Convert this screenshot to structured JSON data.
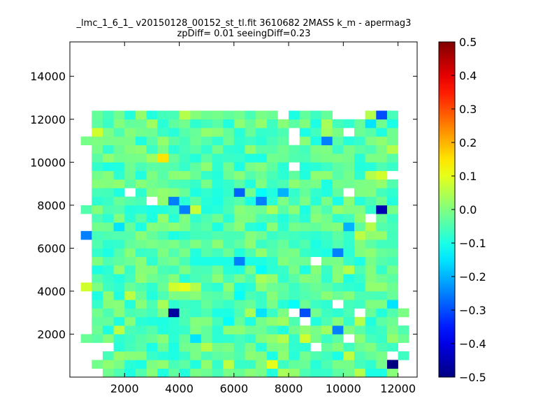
{
  "chart_data": {
    "type": "heatmap",
    "title_line1": "_lmc_1_6_1_ v20150128_00152_st_tl.fit 3610682 2MASS k_m - apermag3",
    "title_line2": "zpDiff= 0.01 seeingDiff=0.23",
    "xlabel": "",
    "ylabel": "",
    "xlim": [
      0,
      12700
    ],
    "ylim": [
      0,
      15600
    ],
    "x_ticks": [
      2000,
      4000,
      6000,
      8000,
      10000,
      12000
    ],
    "y_ticks": [
      2000,
      4000,
      6000,
      8000,
      10000,
      12000,
      14000
    ],
    "colormap": "jet",
    "color_range": [
      -0.5,
      0.5
    ],
    "colorbar_ticks": [
      "0.5",
      "0.4",
      "0.3",
      "0.2",
      "0.1",
      "0.0",
      "−0.1",
      "−0.2",
      "−0.3",
      "−0.4",
      "−0.5"
    ],
    "grid": false,
    "grid_cols": 32,
    "grid_rows": 31,
    "cell_size": 400,
    "default_value": -0.04,
    "empty_cells": [
      [
        0,
        0
      ],
      [
        1,
        0
      ],
      [
        2,
        0
      ],
      [
        0,
        1
      ],
      [
        1,
        1
      ],
      [
        0,
        2
      ],
      [
        1,
        2
      ],
      [
        2,
        2
      ],
      [
        0,
        3
      ],
      [
        1,
        3
      ],
      [
        2,
        3
      ],
      [
        3,
        3
      ],
      [
        0,
        4
      ],
      [
        0,
        5
      ],
      [
        1,
        5
      ],
      [
        0,
        6
      ],
      [
        1,
        6
      ],
      [
        0,
        7
      ],
      [
        1,
        7
      ],
      [
        0,
        8
      ],
      [
        1,
        8
      ],
      [
        0,
        9
      ],
      [
        1,
        9
      ],
      [
        0,
        10
      ],
      [
        0,
        11
      ],
      [
        1,
        11
      ],
      [
        0,
        12
      ],
      [
        1,
        12
      ],
      [
        0,
        13
      ],
      [
        1,
        13
      ],
      [
        0,
        14
      ],
      [
        1,
        14
      ],
      [
        0,
        15
      ],
      [
        1,
        15
      ],
      [
        0,
        16
      ],
      [
        0,
        17
      ],
      [
        1,
        17
      ],
      [
        0,
        18
      ],
      [
        1,
        18
      ],
      [
        0,
        19
      ],
      [
        0,
        20
      ],
      [
        1,
        20
      ],
      [
        0,
        21
      ],
      [
        1,
        21
      ],
      [
        0,
        22
      ],
      [
        1,
        22
      ],
      [
        0,
        23
      ],
      [
        1,
        23
      ],
      [
        0,
        24
      ],
      [
        1,
        24
      ],
      [
        0,
        25
      ],
      [
        1,
        25
      ],
      [
        0,
        26
      ],
      [
        1,
        26
      ],
      [
        0,
        27
      ],
      [
        0,
        28
      ],
      [
        1,
        28
      ],
      [
        0,
        29
      ],
      [
        1,
        29
      ],
      [
        0,
        30
      ],
      [
        1,
        30
      ],
      [
        30,
        0
      ],
      [
        31,
        0
      ],
      [
        30,
        1
      ],
      [
        31,
        1
      ],
      [
        31,
        2
      ],
      [
        30,
        3
      ],
      [
        31,
        3
      ],
      [
        31,
        4
      ],
      [
        31,
        5
      ],
      [
        30,
        6
      ],
      [
        31,
        6
      ],
      [
        31,
        7
      ],
      [
        30,
        8
      ],
      [
        31,
        8
      ],
      [
        30,
        9
      ],
      [
        31,
        9
      ],
      [
        30,
        10
      ],
      [
        31,
        10
      ],
      [
        30,
        11
      ],
      [
        31,
        11
      ],
      [
        30,
        12
      ],
      [
        31,
        12
      ],
      [
        30,
        13
      ],
      [
        31,
        13
      ],
      [
        30,
        14
      ],
      [
        31,
        14
      ],
      [
        30,
        15
      ],
      [
        31,
        15
      ],
      [
        30,
        16
      ],
      [
        31,
        16
      ],
      [
        30,
        17
      ],
      [
        31,
        17
      ],
      [
        30,
        18
      ],
      [
        31,
        18
      ],
      [
        30,
        19
      ],
      [
        31,
        19
      ],
      [
        30,
        20
      ],
      [
        31,
        20
      ],
      [
        30,
        21
      ],
      [
        31,
        21
      ],
      [
        30,
        22
      ],
      [
        31,
        22
      ],
      [
        30,
        23
      ],
      [
        31,
        23
      ],
      [
        30,
        24
      ],
      [
        31,
        24
      ],
      [
        30,
        25
      ],
      [
        31,
        25
      ],
      [
        30,
        26
      ],
      [
        31,
        26
      ],
      [
        30,
        27
      ],
      [
        31,
        27
      ],
      [
        30,
        28
      ],
      [
        31,
        28
      ],
      [
        30,
        29
      ],
      [
        31,
        29
      ],
      [
        30,
        30
      ],
      [
        31,
        30
      ],
      [
        22,
        3
      ],
      [
        29,
        2
      ],
      [
        25,
        4
      ],
      [
        21,
        6
      ],
      [
        26,
        7
      ],
      [
        20,
        7
      ],
      [
        24,
        8
      ],
      [
        22,
        13
      ],
      [
        27,
        18
      ],
      [
        7,
        20
      ],
      [
        5,
        21
      ],
      [
        25,
        21
      ],
      [
        20,
        24
      ],
      [
        29,
        23
      ],
      [
        20,
        27
      ],
      [
        20,
        28
      ],
      [
        25,
        28
      ],
      [
        24,
        30
      ],
      [
        19,
        30
      ],
      [
        25,
        30
      ],
      [
        26,
        30
      ]
    ],
    "cells": [
      {
        "col": 19,
        "row": 0,
        "value": 0.04
      },
      {
        "col": 20,
        "row": 0,
        "value": 0.02
      },
      {
        "col": 26,
        "row": 0,
        "value": 0.05
      },
      {
        "col": 27,
        "row": 0,
        "value": -0.1
      },
      {
        "col": 18,
        "row": 1,
        "value": 0.1
      },
      {
        "col": 16,
        "row": 1,
        "value": -0.07
      },
      {
        "col": 23,
        "row": 1,
        "value": -0.05
      },
      {
        "col": 14,
        "row": 1,
        "value": 0.06
      },
      {
        "col": 29,
        "row": 1,
        "value": -0.5
      },
      {
        "col": 25,
        "row": 2,
        "value": 0.06
      },
      {
        "col": 4,
        "row": 2,
        "value": 0.02
      },
      {
        "col": 7,
        "row": 3,
        "value": -0.1
      },
      {
        "col": 9,
        "row": 3,
        "value": -0.1
      },
      {
        "col": 2,
        "row": 3,
        "value": 0.08
      },
      {
        "col": 30,
        "row": 3,
        "value": 0.07
      },
      {
        "col": 12,
        "row": 3,
        "value": 0.05
      },
      {
        "col": 22,
        "row": 3,
        "value": -0.12
      },
      {
        "col": 21,
        "row": 4,
        "value": 0.08
      },
      {
        "col": 11,
        "row": 4,
        "value": -0.15
      },
      {
        "col": 19,
        "row": 4,
        "value": 0.05
      },
      {
        "col": 0,
        "row": 5,
        "value": -0.3
      },
      {
        "col": 24,
        "row": 5,
        "value": -0.25
      },
      {
        "col": 23,
        "row": 5,
        "value": 0.03
      },
      {
        "col": 4,
        "row": 5,
        "value": 0.06
      },
      {
        "col": 0,
        "row": 6,
        "value": 0.04
      },
      {
        "col": 14,
        "row": 6,
        "value": -0.12
      },
      {
        "col": 26,
        "row": 6,
        "value": 0.05
      },
      {
        "col": 19,
        "row": 6,
        "value": 0.03
      },
      {
        "col": 9,
        "row": 7,
        "value": -0.47
      },
      {
        "col": 17,
        "row": 7,
        "value": -0.15
      },
      {
        "col": 21,
        "row": 7,
        "value": -0.3
      },
      {
        "col": 16,
        "row": 7,
        "value": 0.04
      },
      {
        "col": 12,
        "row": 7,
        "value": -0.05
      },
      {
        "col": 24,
        "row": 7,
        "value": -0.08
      },
      {
        "col": 3,
        "row": 7,
        "value": -0.05
      },
      {
        "col": 7,
        "row": 8,
        "value": -0.05
      },
      {
        "col": 8,
        "row": 8,
        "value": 0.04
      },
      {
        "col": 20,
        "row": 8,
        "value": -0.12
      },
      {
        "col": 29,
        "row": 8,
        "value": -0.15
      },
      {
        "col": 15,
        "row": 9,
        "value": -0.12
      },
      {
        "col": 5,
        "row": 9,
        "value": 0.06
      },
      {
        "col": 15,
        "row": 10,
        "value": -0.1
      },
      {
        "col": 11,
        "row": 10,
        "value": 0.05
      },
      {
        "col": 1,
        "row": 10,
        "value": 0.08
      },
      {
        "col": 9,
        "row": 10,
        "value": 0.08
      },
      {
        "col": 10,
        "row": 10,
        "value": 0.1
      },
      {
        "col": 17,
        "row": 11,
        "value": 0.04
      },
      {
        "col": 25,
        "row": 12,
        "value": 0.05
      },
      {
        "col": 0,
        "row": 13,
        "value": 0.07
      },
      {
        "col": 15,
        "row": 13,
        "value": -0.25
      },
      {
        "col": 26,
        "row": 13,
        "value": -0.1
      },
      {
        "col": 17,
        "row": 12,
        "value": -0.12
      },
      {
        "col": 19,
        "row": 12,
        "value": -0.07
      },
      {
        "col": 31,
        "row": 13,
        "value": -0.07
      },
      {
        "col": 11,
        "row": 13,
        "value": -0.1
      },
      {
        "col": 12,
        "row": 13,
        "value": -0.1
      },
      {
        "col": 13,
        "row": 13,
        "value": -0.1
      },
      {
        "col": 14,
        "row": 13,
        "value": -0.1
      },
      {
        "col": 16,
        "row": 13,
        "value": -0.1
      },
      {
        "col": 18,
        "row": 13,
        "value": -0.08
      },
      {
        "col": 24,
        "row": 14,
        "value": -0.25
      },
      {
        "col": 0,
        "row": 14,
        "value": 0.03
      },
      {
        "col": 0,
        "row": 15,
        "value": 0.04
      },
      {
        "col": 3,
        "row": 15,
        "value": -0.08
      },
      {
        "col": 1,
        "row": 16,
        "value": -0.25
      },
      {
        "col": 28,
        "row": 16,
        "value": 0.02
      },
      {
        "col": 27,
        "row": 17,
        "value": 0.05
      },
      {
        "col": 26,
        "row": 16,
        "value": 0.06
      },
      {
        "col": 25,
        "row": 17,
        "value": -0.2
      },
      {
        "col": 4,
        "row": 17,
        "value": -0.15
      },
      {
        "col": 31,
        "row": 18,
        "value": -0.15
      },
      {
        "col": 10,
        "row": 19,
        "value": -0.25
      },
      {
        "col": 7,
        "row": 19,
        "value": -0.1
      },
      {
        "col": 28,
        "row": 19,
        "value": -0.45
      },
      {
        "col": 11,
        "row": 19,
        "value": 0.07
      },
      {
        "col": 18,
        "row": 19,
        "value": 0.04
      },
      {
        "col": 17,
        "row": 20,
        "value": -0.25
      },
      {
        "col": 13,
        "row": 20,
        "value": -0.1
      },
      {
        "col": 24,
        "row": 20,
        "value": -0.1
      },
      {
        "col": 9,
        "row": 20,
        "value": -0.25
      },
      {
        "col": 15,
        "row": 21,
        "value": -0.28
      },
      {
        "col": 19,
        "row": 21,
        "value": -0.2
      },
      {
        "col": 0,
        "row": 21,
        "value": -0.1
      },
      {
        "col": 6,
        "row": 21,
        "value": -0.08
      },
      {
        "col": 17,
        "row": 21,
        "value": -0.12
      },
      {
        "col": 28,
        "row": 23,
        "value": 0.08
      },
      {
        "col": 27,
        "row": 23,
        "value": 0.05
      },
      {
        "col": 13,
        "row": 24,
        "value": -0.08
      },
      {
        "col": 15,
        "row": 24,
        "value": -0.1
      },
      {
        "col": 8,
        "row": 25,
        "value": 0.15
      },
      {
        "col": 7,
        "row": 25,
        "value": 0.03
      },
      {
        "col": 29,
        "row": 26,
        "value": 0.05
      },
      {
        "col": 23,
        "row": 27,
        "value": -0.25
      },
      {
        "col": 15,
        "row": 27,
        "value": -0.08
      },
      {
        "col": 21,
        "row": 28,
        "value": -0.1
      },
      {
        "col": 1,
        "row": 28,
        "value": 0.05
      },
      {
        "col": 2,
        "row": 28,
        "value": 0.08
      },
      {
        "col": 0,
        "row": 28,
        "value": 0.06
      },
      {
        "col": 23,
        "row": 28,
        "value": 0.03
      },
      {
        "col": 27,
        "row": 29,
        "value": -0.15
      },
      {
        "col": 23,
        "row": 29,
        "value": 0.04
      },
      {
        "col": 7,
        "row": 29,
        "value": 0.03
      },
      {
        "col": 29,
        "row": 29,
        "value": -0.1
      },
      {
        "col": 28,
        "row": 30,
        "value": -0.3
      },
      {
        "col": 27,
        "row": 30,
        "value": 0.05
      },
      {
        "col": 11,
        "row": 29,
        "value": -0.08
      },
      {
        "col": 10,
        "row": 30,
        "value": 0.05
      }
    ]
  }
}
